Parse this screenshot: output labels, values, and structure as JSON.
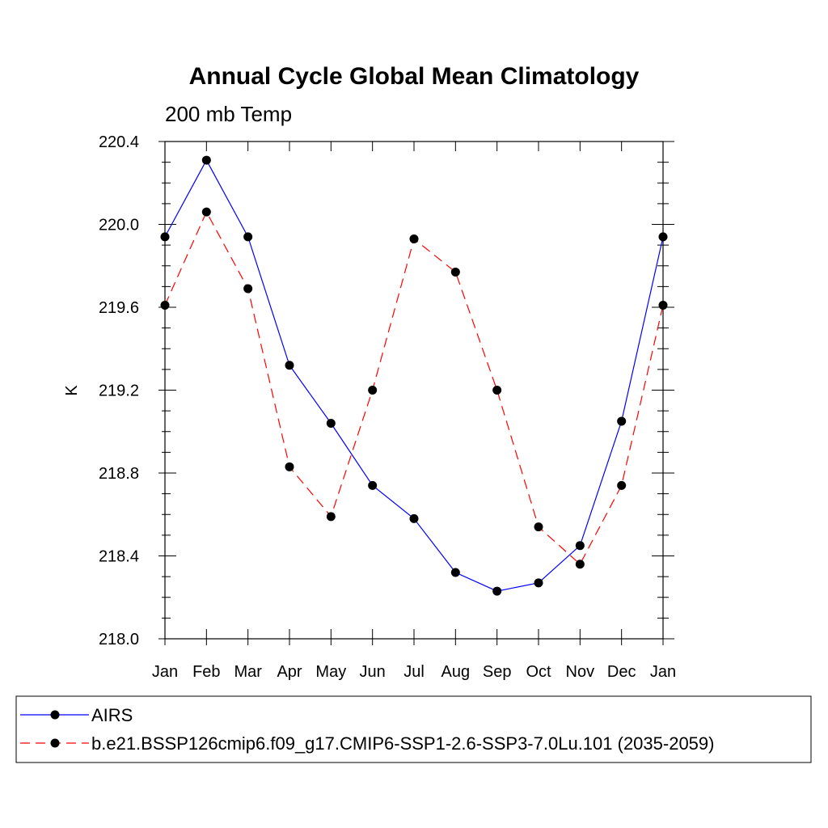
{
  "chart_data": {
    "type": "line",
    "title": "Annual Cycle Global Mean Climatology",
    "subtitle": "200 mb Temp",
    "ylabel": "K",
    "xlabel": "",
    "categories": [
      "Jan",
      "Feb",
      "Mar",
      "Apr",
      "May",
      "Jun",
      "Jul",
      "Aug",
      "Sep",
      "Oct",
      "Nov",
      "Dec",
      "Jan"
    ],
    "ylim": [
      218.0,
      220.4
    ],
    "yticks": [
      218.0,
      218.4,
      218.8,
      219.2,
      219.6,
      220.0,
      220.4
    ],
    "ytick_labels": [
      "218.0",
      "218.4",
      "218.8",
      "219.2",
      "219.6",
      "220.0",
      "220.4"
    ],
    "grid": false,
    "legend_position": "bottom",
    "series": [
      {
        "name": "AIRS",
        "color": "#0000ff",
        "line_style": "solid",
        "marker": "filled-circle",
        "values": [
          219.94,
          220.31,
          219.94,
          219.32,
          219.04,
          218.74,
          218.58,
          218.32,
          218.23,
          218.27,
          218.45,
          219.05,
          219.94
        ]
      },
      {
        "name": "b.e21.BSSP126cmip6.f09_g17.CMIP6-SSP1-2.6-SSP3-7.0Lu.101 (2035-2059)",
        "color": "#ff0000",
        "line_style": "dashed",
        "marker": "filled-circle",
        "values": [
          219.61,
          220.06,
          219.69,
          218.83,
          218.59,
          219.2,
          219.93,
          219.77,
          219.2,
          218.54,
          218.36,
          218.74,
          219.61
        ]
      }
    ]
  }
}
